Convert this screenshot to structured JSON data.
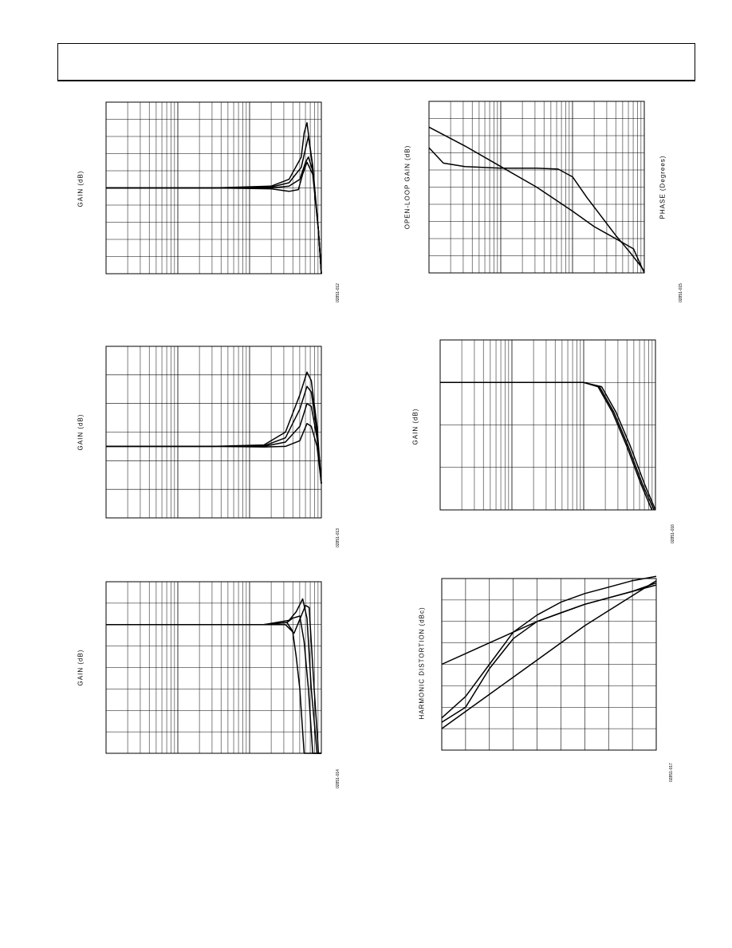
{
  "header": {
    "title": ""
  },
  "charts": [
    {
      "ylabel": "GAIN (dB)",
      "fig_id": "02851-012"
    },
    {
      "ylabel": "GAIN (dB)",
      "fig_id": "02851-013"
    },
    {
      "ylabel": "GAIN (dB)",
      "fig_id": "02851-014"
    },
    {
      "ylabel": "OPEN-LOOP GAIN (dB)",
      "ylabel2": "PHASE (Degrees)",
      "fig_id": "02851-015"
    },
    {
      "ylabel": "GAIN (dB)",
      "fig_id": "02851-016"
    },
    {
      "ylabel": "HARMONIC DISTORTION (dBc)",
      "fig_id": "02851-017"
    }
  ],
  "chart_data": [
    {
      "type": "line",
      "xscale": "log",
      "xlim": [
        0,
        3
      ],
      "ylim": [
        0,
        10
      ],
      "ylabel": "GAIN (dB)",
      "grid": true,
      "series": [
        {
          "x": [
            0,
            1.5,
            2.3,
            2.55,
            2.72,
            2.76,
            2.8,
            2.87,
            2.96,
            3.0
          ],
          "y": [
            5,
            5,
            5.1,
            5.5,
            6.8,
            8.2,
            8.8,
            6.5,
            2.5,
            0
          ]
        },
        {
          "x": [
            0,
            1.5,
            2.3,
            2.55,
            2.72,
            2.78,
            2.82,
            2.88,
            2.96,
            3.0
          ],
          "y": [
            5,
            5,
            5.05,
            5.3,
            6.2,
            7.3,
            8.0,
            6.3,
            2.5,
            0
          ]
        },
        {
          "x": [
            0,
            1.5,
            2.3,
            2.55,
            2.7,
            2.78,
            2.82,
            2.88,
            2.96,
            3.0
          ],
          "y": [
            5,
            5,
            5.0,
            5.1,
            5.5,
            6.5,
            6.8,
            6.0,
            2.5,
            0
          ]
        },
        {
          "x": [
            0,
            1.5,
            2.3,
            2.55,
            2.68,
            2.74,
            2.8,
            2.88,
            2.96,
            3.0
          ],
          "y": [
            5,
            5,
            4.95,
            4.8,
            4.9,
            5.8,
            6.5,
            5.8,
            2.5,
            0
          ]
        }
      ]
    },
    {
      "type": "line",
      "xscale": "log",
      "xlim": [
        0,
        3
      ],
      "ylim": [
        0,
        6
      ],
      "ylabel": "GAIN (dB)",
      "grid": true,
      "series": [
        {
          "x": [
            0,
            1.5,
            2.2,
            2.5,
            2.7,
            2.8,
            2.86,
            2.94,
            3.0
          ],
          "y": [
            2.5,
            2.5,
            2.55,
            3.0,
            4.3,
            5.1,
            4.8,
            3.2,
            1.2
          ]
        },
        {
          "x": [
            0,
            1.5,
            2.2,
            2.5,
            2.7,
            2.8,
            2.86,
            2.94,
            3.0
          ],
          "y": [
            2.5,
            2.5,
            2.52,
            2.8,
            3.8,
            4.6,
            4.4,
            3.0,
            1.2
          ]
        },
        {
          "x": [
            0,
            1.5,
            2.2,
            2.5,
            2.7,
            2.8,
            2.86,
            2.94,
            3.0
          ],
          "y": [
            2.5,
            2.5,
            2.5,
            2.65,
            3.2,
            4.0,
            3.9,
            2.8,
            1.2
          ]
        },
        {
          "x": [
            0,
            1.5,
            2.2,
            2.5,
            2.7,
            2.8,
            2.86,
            2.94,
            3.0
          ],
          "y": [
            2.5,
            2.5,
            2.48,
            2.5,
            2.7,
            3.3,
            3.2,
            2.5,
            1.2
          ]
        }
      ]
    },
    {
      "type": "line",
      "xscale": "log",
      "xlim": [
        0,
        3
      ],
      "ylim": [
        0,
        8
      ],
      "ylabel": "GAIN (dB)",
      "grid": true,
      "series": [
        {
          "x": [
            0,
            1.6,
            2.2,
            2.52,
            2.6,
            2.65,
            2.7,
            2.76,
            3.0
          ],
          "y": [
            6,
            6,
            6.0,
            6.1,
            5.7,
            4.5,
            3.0,
            0,
            0
          ]
        },
        {
          "x": [
            0,
            1.6,
            2.2,
            2.52,
            2.6,
            2.7,
            2.76,
            2.82,
            2.88,
            3.0
          ],
          "y": [
            6,
            6,
            6.0,
            6.1,
            6.3,
            6.4,
            5.2,
            3.0,
            0,
            0
          ]
        },
        {
          "x": [
            0,
            1.6,
            2.2,
            2.55,
            2.65,
            2.74,
            2.8,
            2.86,
            2.94,
            3.0
          ],
          "y": [
            6,
            6,
            6.0,
            6.2,
            6.6,
            7.2,
            6.3,
            3.0,
            0,
            0
          ]
        },
        {
          "x": [
            0,
            1.6,
            2.2,
            2.5,
            2.62,
            2.78,
            2.83,
            2.9,
            2.96,
            3.0
          ],
          "y": [
            6,
            6,
            6.0,
            6.0,
            5.6,
            6.9,
            6.8,
            3.0,
            0,
            0
          ]
        }
      ]
    },
    {
      "type": "line",
      "xscale": "log",
      "xlim": [
        0,
        3
      ],
      "ylim": [
        0,
        10
      ],
      "ylabel": "OPEN-LOOP GAIN (dB)",
      "ylabel2": "PHASE (Degrees)",
      "grid": true,
      "series": [
        {
          "x": [
            0,
            0.5,
            1.0,
            1.5,
            2.0,
            2.3,
            2.6,
            2.85,
            3.0
          ],
          "y": [
            8.5,
            7.4,
            6.2,
            5.0,
            3.6,
            2.7,
            2.0,
            1.4,
            0.0
          ]
        },
        {
          "x": [
            0,
            0.2,
            0.5,
            1.0,
            1.5,
            1.8,
            2.0,
            2.2,
            2.4,
            2.6,
            2.8,
            2.95,
            3.0
          ],
          "y": [
            7.3,
            6.4,
            6.2,
            6.1,
            6.1,
            6.05,
            5.6,
            4.4,
            3.3,
            2.2,
            1.2,
            0.4,
            0.1
          ]
        }
      ]
    },
    {
      "type": "line",
      "xscale": "log",
      "xlim": [
        0,
        3
      ],
      "ylim": [
        0,
        4
      ],
      "ylabel": "GAIN (dB)",
      "grid": true,
      "series": [
        {
          "x": [
            0,
            1.0,
            2.0,
            2.2,
            2.4,
            2.6,
            2.8,
            2.95
          ],
          "y": [
            3.0,
            3.0,
            3.0,
            2.9,
            2.3,
            1.5,
            0.6,
            0.0
          ]
        },
        {
          "x": [
            0,
            1.0,
            2.0,
            2.22,
            2.42,
            2.62,
            2.82,
            2.98
          ],
          "y": [
            3.0,
            3.0,
            3.0,
            2.9,
            2.3,
            1.5,
            0.6,
            0.0
          ]
        },
        {
          "x": [
            0,
            1.0,
            2.0,
            2.25,
            2.45,
            2.65,
            2.85,
            3.0
          ],
          "y": [
            3.0,
            3.0,
            3.0,
            2.9,
            2.3,
            1.5,
            0.6,
            0.0
          ]
        }
      ]
    },
    {
      "type": "line",
      "xlim": [
        0,
        9
      ],
      "ylim": [
        0,
        8
      ],
      "ylabel": "HARMONIC DISTORTION (dBc)",
      "grid": true,
      "series": [
        {
          "x": [
            0,
            1,
            2,
            3,
            4,
            5,
            6,
            7,
            8,
            9
          ],
          "y": [
            4.0,
            4.5,
            5.0,
            5.5,
            6.0,
            6.4,
            6.8,
            7.1,
            7.4,
            7.7
          ]
        },
        {
          "x": [
            0,
            1,
            2,
            3,
            4,
            5,
            6,
            7,
            8,
            9
          ],
          "y": [
            1.3,
            2.0,
            3.8,
            5.2,
            6.0,
            6.4,
            6.8,
            7.1,
            7.4,
            7.8
          ]
        },
        {
          "x": [
            0,
            1,
            2,
            3,
            4,
            5,
            6,
            7,
            8,
            9
          ],
          "y": [
            1.5,
            2.5,
            4.0,
            5.5,
            6.3,
            6.9,
            7.3,
            7.6,
            7.9,
            8.1
          ]
        },
        {
          "x": [
            0,
            1,
            2,
            3,
            4,
            5,
            6,
            7,
            8,
            9
          ],
          "y": [
            1.0,
            1.8,
            2.6,
            3.4,
            4.2,
            5.0,
            5.8,
            6.5,
            7.2,
            7.9
          ]
        }
      ]
    }
  ]
}
